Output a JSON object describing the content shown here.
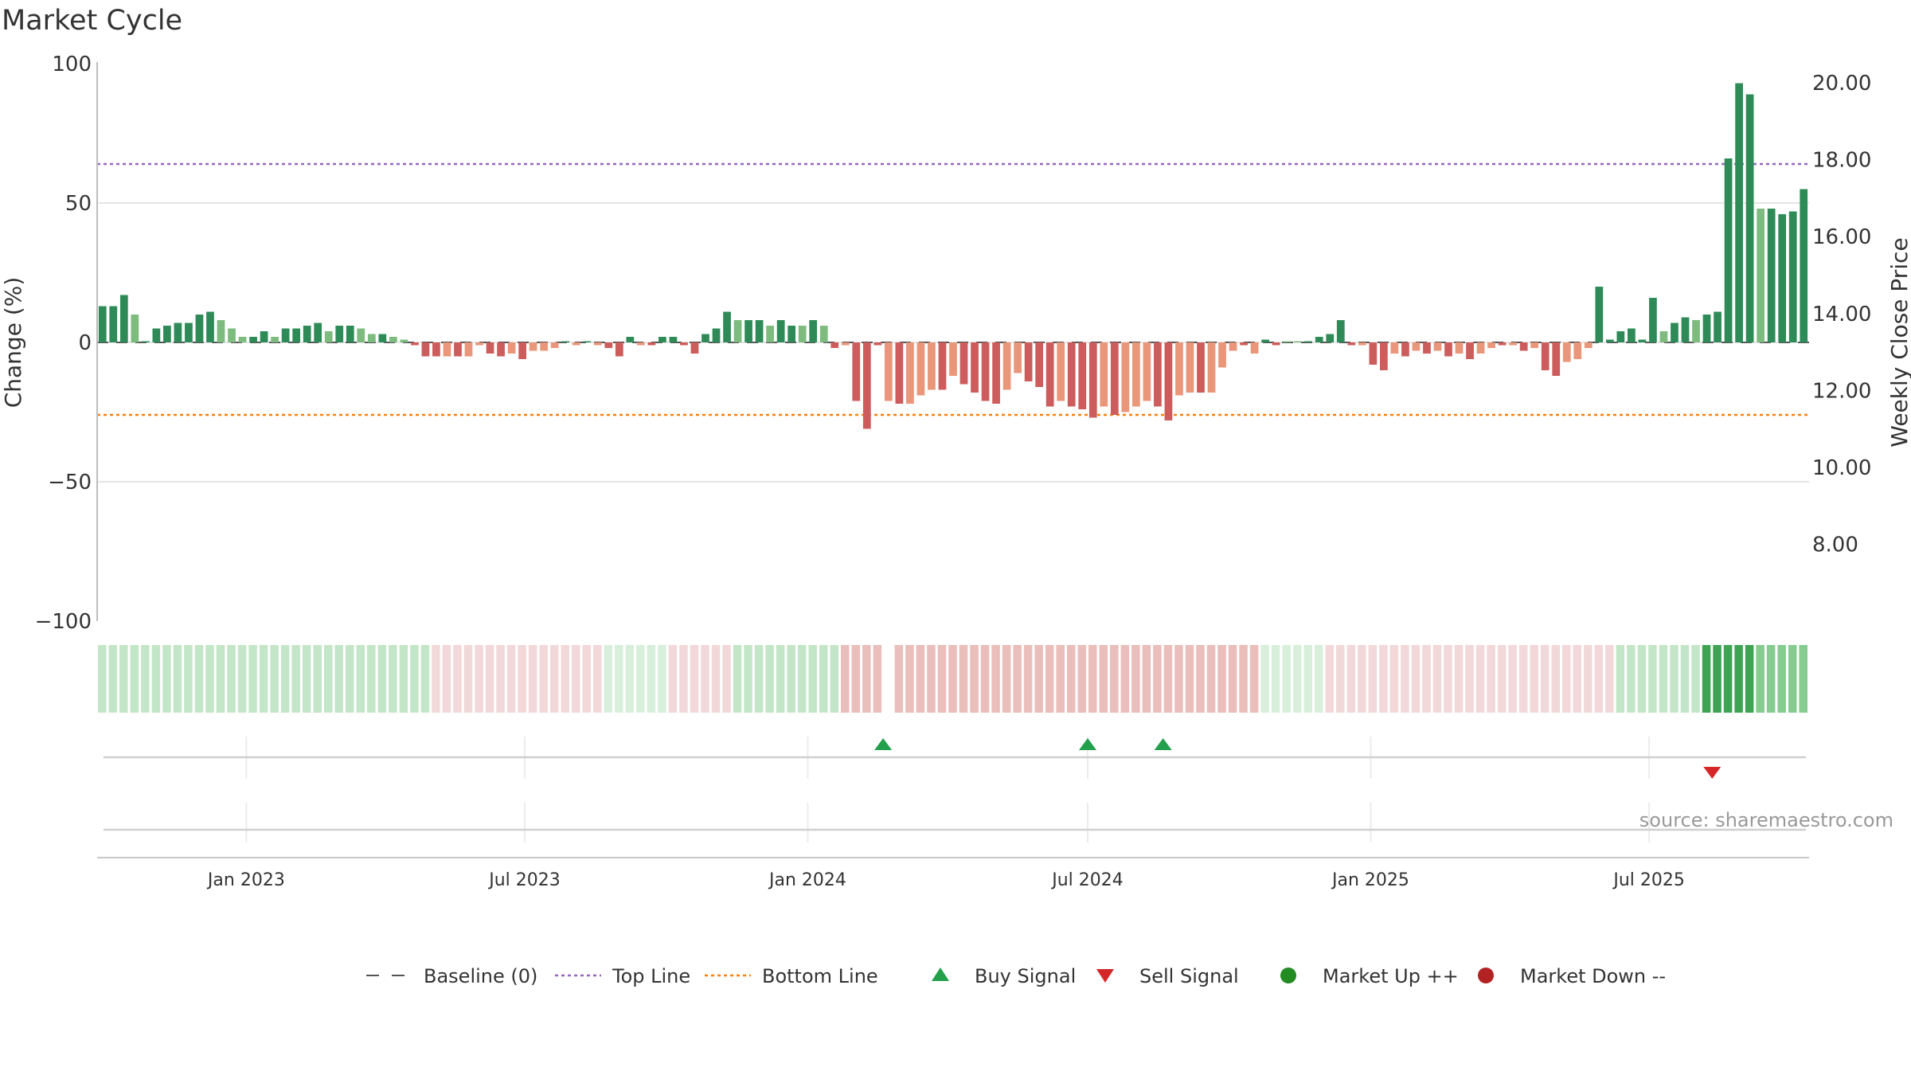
{
  "title": "Market Cycle",
  "source": "source: sharemaestro.com",
  "chart_data": {
    "type": "bar",
    "title": "Market Cycle",
    "ylabel": "Change (%)",
    "ylabel_right": "Weekly Close Price",
    "ylim": [
      -100,
      100
    ],
    "yticks": [
      100,
      50,
      0,
      -50,
      -100
    ],
    "yticks_display": [
      "100",
      "50",
      "0",
      "−50",
      "−100"
    ],
    "ylim_right": [
      6.0,
      20.5
    ],
    "yticks_right": [
      "20.00",
      "18.00",
      "16.00",
      "14.00",
      "12.00",
      "10.00",
      "8.00"
    ],
    "yticks_right_values": [
      20,
      18,
      16,
      14,
      12,
      10,
      8
    ],
    "x_start": "2022-09-26",
    "x_end": "2025-10-13",
    "xticks": [
      {
        "date": "2023-01-01",
        "label": "Jan 2023"
      },
      {
        "date": "2023-07-01",
        "label": "Jul 2023"
      },
      {
        "date": "2024-01-01",
        "label": "Jan 2024"
      },
      {
        "date": "2024-07-01",
        "label": "Jul 2024"
      },
      {
        "date": "2025-01-01",
        "label": "Jan 2025"
      },
      {
        "date": "2025-07-01",
        "label": "Jul 2025"
      }
    ],
    "top_line": 64,
    "bottom_line": -26,
    "baseline": 0,
    "series": [
      {
        "values": [
          13,
          13,
          17,
          10,
          0,
          5,
          6,
          7,
          7,
          10,
          11,
          8,
          5,
          2,
          2,
          4,
          2,
          5,
          5,
          6,
          7,
          4,
          6,
          6,
          5,
          3,
          3,
          2,
          1,
          -1,
          -5,
          -5,
          -5,
          -5,
          -5,
          -1,
          -4,
          -5,
          -4,
          -6,
          -3,
          -3,
          -2,
          0,
          -1,
          0,
          -1,
          -2,
          -5,
          2,
          -1,
          -1,
          2,
          2,
          -1,
          -4,
          3,
          5,
          11,
          8,
          8,
          8,
          6,
          8,
          6,
          6,
          8,
          6,
          -2,
          -1,
          -21,
          -31,
          -1,
          -21,
          -22,
          -22,
          -19,
          -17,
          -17,
          -12,
          -15,
          -18,
          -21,
          -22,
          -17,
          -11,
          -14,
          -16,
          -23,
          -21,
          -23,
          -24,
          -27,
          -23,
          -26,
          -25,
          -23,
          -21,
          -23,
          -28,
          -19,
          -18,
          -18,
          -18,
          -9,
          -3,
          -1,
          -4,
          1,
          -1,
          0,
          0,
          0,
          2,
          3,
          8,
          -1,
          -1,
          -8,
          -10,
          -4,
          -5,
          -3,
          -4,
          -3,
          -5,
          -4,
          -6,
          -4,
          -2,
          -1,
          -1,
          -3,
          -2,
          -10,
          -12,
          -7,
          -6,
          -2,
          20,
          1,
          4,
          5,
          1,
          16,
          4,
          7,
          9,
          8,
          10,
          11,
          66,
          93,
          89,
          48,
          48,
          46,
          47,
          55
        ],
        "shades": [
          "d",
          "d",
          "d",
          "l",
          "d",
          "d",
          "d",
          "d",
          "d",
          "d",
          "d",
          "l",
          "l",
          "l",
          "d",
          "d",
          "l",
          "d",
          "d",
          "d",
          "d",
          "l",
          "d",
          "d",
          "l",
          "l",
          "d",
          "l",
          "l",
          "d",
          "d",
          "d",
          "l",
          "d",
          "l",
          "l",
          "d",
          "d",
          "l",
          "d",
          "l",
          "l",
          "l",
          "d",
          "l",
          "d",
          "l",
          "d",
          "d",
          "d",
          "l",
          "d",
          "d",
          "d",
          "d",
          "d",
          "d",
          "d",
          "d",
          "l",
          "d",
          "d",
          "l",
          "d",
          "d",
          "l",
          "d",
          "l",
          "d",
          "l",
          "d",
          "d",
          "d",
          "l",
          "d",
          "l",
          "l",
          "l",
          "d",
          "l",
          "d",
          "d",
          "d",
          "d",
          "l",
          "l",
          "d",
          "d",
          "d",
          "l",
          "d",
          "d",
          "d",
          "l",
          "d",
          "l",
          "l",
          "l",
          "d",
          "d",
          "l",
          "l",
          "d",
          "l",
          "l",
          "l",
          "d",
          "l",
          "d",
          "d",
          "l",
          "l",
          "d",
          "d",
          "d",
          "d",
          "d",
          "l",
          "d",
          "d",
          "l",
          "d",
          "l",
          "d",
          "l",
          "d",
          "l",
          "d",
          "l",
          "l",
          "d",
          "l",
          "d",
          "l",
          "d",
          "d",
          "l",
          "l",
          "l",
          "d",
          "d",
          "d",
          "d",
          "d",
          "d",
          "l",
          "d",
          "d",
          "l",
          "d",
          "d",
          "d",
          "d",
          "d",
          "l",
          "d",
          "d",
          "d",
          "d"
        ]
      }
    ],
    "band": [
      {
        "start": "2022-09-26",
        "end": "2023-05-01",
        "state": "up-weak"
      },
      {
        "start": "2023-05-01",
        "end": "2023-08-21",
        "state": "down-weak"
      },
      {
        "start": "2023-08-21",
        "end": "2023-10-02",
        "state": "up-faint"
      },
      {
        "start": "2023-10-02",
        "end": "2023-11-13",
        "state": "down-weak"
      },
      {
        "start": "2023-11-13",
        "end": "2024-01-22",
        "state": "up-weak"
      },
      {
        "start": "2024-01-22",
        "end": "2024-02-19",
        "state": "down-mid"
      },
      {
        "start": "2024-02-26",
        "end": "2024-10-21",
        "state": "down-mid"
      },
      {
        "start": "2024-10-21",
        "end": "2024-12-02",
        "state": "up-faint"
      },
      {
        "start": "2024-12-02",
        "end": "2025-06-09",
        "state": "down-weak"
      },
      {
        "start": "2025-06-09",
        "end": "2025-08-04",
        "state": "up-weak"
      },
      {
        "start": "2025-08-04",
        "end": "2025-09-08",
        "state": "up-strong"
      },
      {
        "start": "2025-09-08",
        "end": "2025-10-13",
        "state": "up-mid"
      }
    ],
    "buy_signals": [
      "2024-02-19",
      "2024-07-01",
      "2024-08-19"
    ],
    "sell_signals": [
      "2025-08-11"
    ],
    "legend": [
      {
        "label": "Baseline (0)",
        "symbol": "dash-gray"
      },
      {
        "label": "Top Line",
        "symbol": "dot-purple"
      },
      {
        "label": "Bottom Line",
        "symbol": "dot-orange"
      },
      {
        "label": "Buy Signal",
        "symbol": "triangle-up"
      },
      {
        "label": "Sell Signal",
        "symbol": "triangle-down"
      },
      {
        "label": "Market Up ++",
        "symbol": "circle-green"
      },
      {
        "label": "Market Down --",
        "symbol": "circle-red"
      }
    ],
    "legend_placement": "bottom-center",
    "grid": true
  },
  "colors": {
    "up_dark": "#2e8b57",
    "up_light": "#7dbb7f",
    "down_dark": "#cd5c5c",
    "down_light": "#e9967a",
    "top_line": "#9467bd",
    "bottom_line": "#ff7f0e",
    "buy": "#22a04b",
    "sell": "#d62728",
    "market_up": "#228b22",
    "market_down": "#b22222",
    "up-weak": "#c4e6c8",
    "up-faint": "#d7efdb",
    "up-mid": "#86cc91",
    "up-strong": "#3ea454",
    "down-weak": "#f2d8d8",
    "down-mid": "#eabeba"
  }
}
